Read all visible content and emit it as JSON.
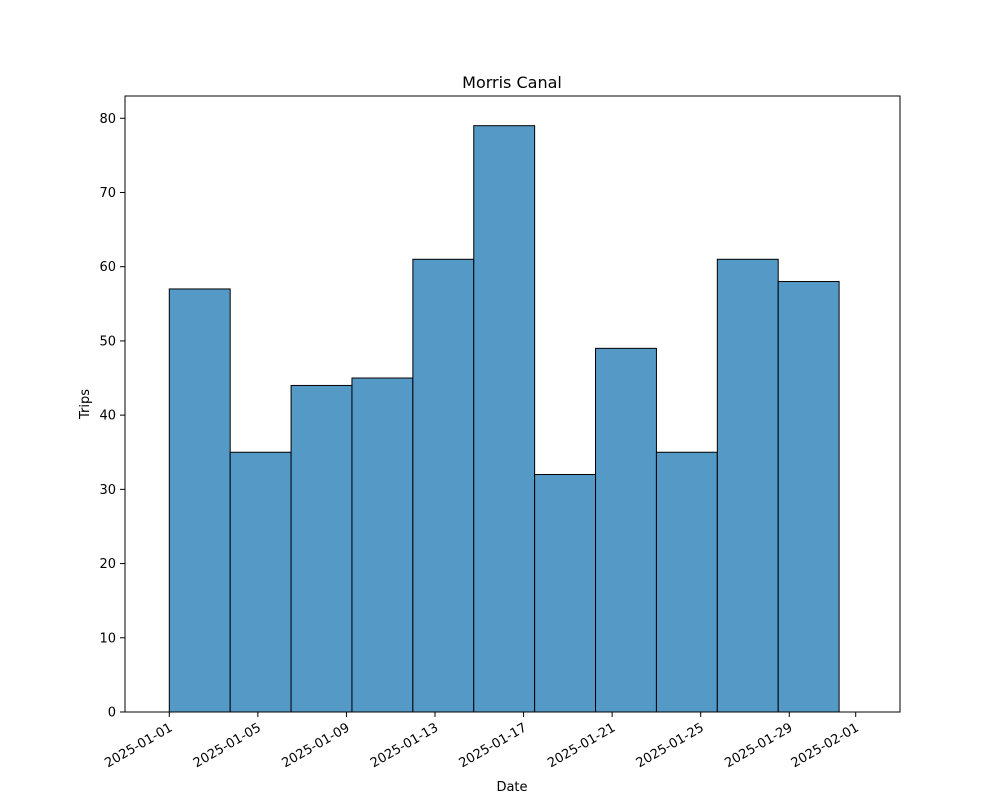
{
  "chart_data": {
    "type": "bar",
    "title": "Morris Canal",
    "xlabel": "Date",
    "ylabel": "Trips",
    "x_ticks": [
      "2025-01-01",
      "2025-01-05",
      "2025-01-09",
      "2025-01-13",
      "2025-01-17",
      "2025-01-21",
      "2025-01-25",
      "2025-01-29",
      "2025-02-01"
    ],
    "y_ticks": [
      0,
      10,
      20,
      30,
      40,
      50,
      60,
      70,
      80
    ],
    "xlim": [
      "2024-12-30",
      "2025-02-03"
    ],
    "ylim": [
      0,
      83
    ],
    "bins": [
      {
        "start": "2025-01-01",
        "end": "2025-01-03 18:00",
        "count": 57
      },
      {
        "start": "2025-01-03 18:00",
        "end": "2025-01-06 12:00",
        "count": 35
      },
      {
        "start": "2025-01-06 12:00",
        "end": "2025-01-09 06:00",
        "count": 44
      },
      {
        "start": "2025-01-09 06:00",
        "end": "2025-01-12",
        "count": 45
      },
      {
        "start": "2025-01-12",
        "end": "2025-01-14 18:00",
        "count": 61
      },
      {
        "start": "2025-01-14 18:00",
        "end": "2025-01-17 12:00",
        "count": 79
      },
      {
        "start": "2025-01-17 12:00",
        "end": "2025-01-20 06:00",
        "count": 32
      },
      {
        "start": "2025-01-20 06:00",
        "end": "2025-01-23",
        "count": 49
      },
      {
        "start": "2025-01-23",
        "end": "2025-01-25 18:00",
        "count": 35
      },
      {
        "start": "2025-01-25 18:00",
        "end": "2025-01-28 12:00",
        "count": 61
      },
      {
        "start": "2025-01-28 12:00",
        "end": "2025-01-31 06:00",
        "count": 58
      }
    ],
    "colors": {
      "bar_fill": "#5599c7",
      "bar_edge": "#000000",
      "axis": "#000000"
    },
    "grid": false,
    "legend": "none"
  }
}
